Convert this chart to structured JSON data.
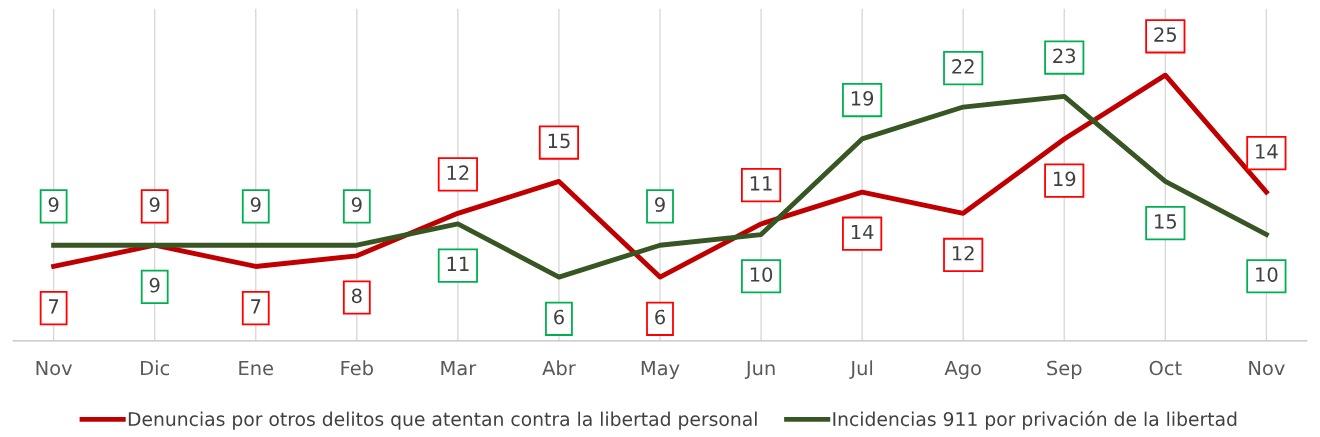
{
  "chart_data": {
    "type": "line",
    "categories": [
      "Nov",
      "Dic",
      "Ene",
      "Feb",
      "Mar",
      "Abr",
      "May",
      "Jun",
      "Jul",
      "Ago",
      "Sep",
      "Oct",
      "Nov"
    ],
    "series": [
      {
        "name": "Denuncias por otros delitos que atentan contra la libertad personal",
        "color": "#c00000",
        "values": [
          7,
          9,
          7,
          8,
          12,
          15,
          6,
          11,
          14,
          12,
          19,
          25,
          14
        ]
      },
      {
        "name": "Incidencias 911 por privación de la libertad",
        "color": "#375623",
        "values": [
          9,
          9,
          9,
          9,
          11,
          6,
          9,
          10,
          19,
          22,
          23,
          15,
          10
        ]
      }
    ],
    "data_labels": true,
    "grid": "x",
    "legend": "bottom",
    "marker": "none",
    "line_style": "solid"
  }
}
